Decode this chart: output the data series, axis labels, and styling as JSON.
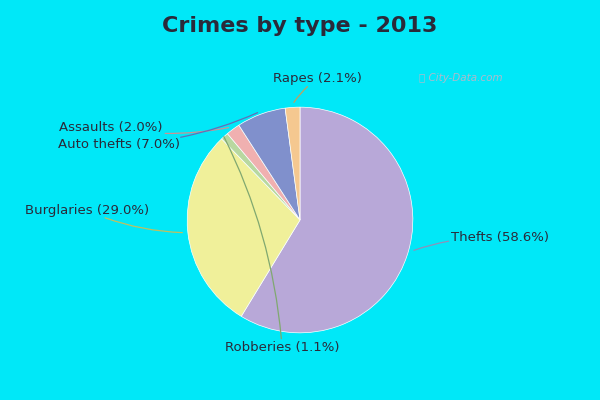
{
  "title": "Crimes by type - 2013",
  "labels": [
    "Thefts",
    "Burglaries",
    "Robberies",
    "Assaults",
    "Auto thefts",
    "Rapes"
  ],
  "values": [
    58.6,
    29.0,
    1.1,
    2.0,
    7.0,
    2.1
  ],
  "colors": [
    "#b8a8d8",
    "#f0f09a",
    "#b8d8a0",
    "#f0b0b0",
    "#8090cc",
    "#f5c890"
  ],
  "bg_cyan": "#00e8f8",
  "bg_chart": "#c8e8d8",
  "title_color": "#2a2a3a",
  "title_fontsize": 16,
  "label_fontsize": 9.5,
  "startangle": 90
}
